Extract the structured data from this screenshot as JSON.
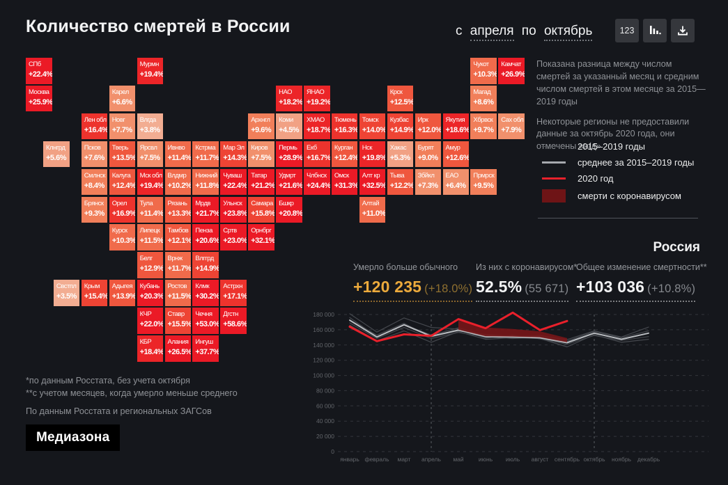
{
  "header": {
    "title": "Количество смертей в России",
    "range": {
      "prefix": "с",
      "from": "апреля",
      "mid": "по",
      "to": "октябрь"
    },
    "buttons": {
      "numbers": "123"
    }
  },
  "description": {
    "p1": "Показана разница между числом смертей за указанный месяц и средним числом смертей в этом месяце за 2015—2019 годы",
    "p2": "Некоторые регионы не предоставили данные за октябрь 2020 года, они отмечены «н/д»"
  },
  "legend": {
    "items": [
      {
        "label": "2015–2019 годы",
        "swatch": "line",
        "color": "#54575c",
        "thickness": 1.5
      },
      {
        "label": "среднее за 2015–2019 годы",
        "swatch": "line",
        "color": "#a6a9ae",
        "thickness": 2.5
      },
      {
        "label": "2020 год",
        "swatch": "line",
        "color": "#e8212b",
        "thickness": 3.5
      },
      {
        "label": "смерти с коронавирусом",
        "swatch": "area",
        "color": "#6e1416",
        "thickness": 19
      }
    ]
  },
  "map": {
    "scale": [
      {
        "max": 4,
        "color": "#f2ad92"
      },
      {
        "max": 6,
        "color": "#f1a184"
      },
      {
        "max": 8,
        "color": "#f1906c"
      },
      {
        "max": 10,
        "color": "#f17f5a"
      },
      {
        "max": 12,
        "color": "#f06b4b"
      },
      {
        "max": 14,
        "color": "#ef573e"
      },
      {
        "max": 16,
        "color": "#ee4434"
      },
      {
        "max": 18,
        "color": "#ed332d"
      },
      {
        "max": 20,
        "color": "#ec2528"
      },
      {
        "max": 999,
        "color": "#eb1a26"
      }
    ],
    "regions": [
      {
        "n": "СПб",
        "d": "+22.4%",
        "v": 22.4,
        "r": 0,
        "c": 0
      },
      {
        "n": "Мурмн",
        "d": "+19.4%",
        "v": 19.4,
        "r": 0,
        "c": 4
      },
      {
        "n": "Чукот",
        "d": "+10.3%",
        "v": 10.3,
        "r": 0,
        "c": 16
      },
      {
        "n": "Камчат",
        "d": "+26.9%",
        "v": 26.9,
        "r": 0,
        "c": 17
      },
      {
        "n": "Москва",
        "d": "+25.9%",
        "v": 25.9,
        "r": 1,
        "c": 0
      },
      {
        "n": "Карел",
        "d": "+6.6%",
        "v": 6.6,
        "r": 1,
        "c": 3
      },
      {
        "n": "НАО",
        "d": "+18.2%",
        "v": 18.2,
        "r": 1,
        "c": 9
      },
      {
        "n": "ЯНАО",
        "d": "+19.2%",
        "v": 19.2,
        "r": 1,
        "c": 10
      },
      {
        "n": "Крск",
        "d": "+12.5%",
        "v": 12.5,
        "r": 1,
        "c": 13
      },
      {
        "n": "Магад",
        "d": "+8.6%",
        "v": 8.6,
        "r": 1,
        "c": 16
      },
      {
        "n": "Лен обл",
        "d": "+16.4%",
        "v": 16.4,
        "r": 2,
        "c": 2
      },
      {
        "n": "Новг",
        "d": "+7.7%",
        "v": 7.7,
        "r": 2,
        "c": 3
      },
      {
        "n": "Влгда",
        "d": "+3.8%",
        "v": 3.8,
        "r": 2,
        "c": 4
      },
      {
        "n": "Архнгл",
        "d": "+9.6%",
        "v": 9.6,
        "r": 2,
        "c": 8
      },
      {
        "n": "Коми",
        "d": "+4.5%",
        "v": 4.5,
        "r": 2,
        "c": 9
      },
      {
        "n": "ХМАО",
        "d": "+18.7%",
        "v": 18.7,
        "r": 2,
        "c": 10
      },
      {
        "n": "Тюмень",
        "d": "+16.3%",
        "v": 16.3,
        "r": 2,
        "c": 11
      },
      {
        "n": "Томск",
        "d": "+14.0%",
        "v": 14.0,
        "r": 2,
        "c": 12
      },
      {
        "n": "Кузбас",
        "d": "+14.9%",
        "v": 14.9,
        "r": 2,
        "c": 13
      },
      {
        "n": "Ирк",
        "d": "+12.0%",
        "v": 12.0,
        "r": 2,
        "c": 14
      },
      {
        "n": "Якутия",
        "d": "+18.6%",
        "v": 18.6,
        "r": 2,
        "c": 15
      },
      {
        "n": "Хбрвск",
        "d": "+9.7%",
        "v": 9.7,
        "r": 2,
        "c": 16
      },
      {
        "n": "Сах обл",
        "d": "+7.9%",
        "v": 7.9,
        "r": 2,
        "c": 17
      },
      {
        "n": "Клнгрд",
        "d": "+5.6%",
        "v": 5.6,
        "r": 3,
        "c": 0,
        "x": 62
      },
      {
        "n": "Псков",
        "d": "+7.6%",
        "v": 7.6,
        "r": 3,
        "c": 2
      },
      {
        "n": "Тверь",
        "d": "+13.5%",
        "v": 13.5,
        "r": 3,
        "c": 3
      },
      {
        "n": "Ярсвл",
        "d": "+7.5%",
        "v": 7.5,
        "r": 3,
        "c": 4
      },
      {
        "n": "Ивнво",
        "d": "+11.4%",
        "v": 11.4,
        "r": 3,
        "c": 5
      },
      {
        "n": "Кстрма",
        "d": "+11.7%",
        "v": 11.7,
        "r": 3,
        "c": 6
      },
      {
        "n": "Мар Эл",
        "d": "+14.3%",
        "v": 14.3,
        "r": 3,
        "c": 7
      },
      {
        "n": "Киров",
        "d": "+7.5%",
        "v": 7.5,
        "r": 3,
        "c": 8
      },
      {
        "n": "Пермь",
        "d": "+28.9%",
        "v": 28.9,
        "r": 3,
        "c": 9
      },
      {
        "n": "Екб",
        "d": "+16.7%",
        "v": 16.7,
        "r": 3,
        "c": 10
      },
      {
        "n": "Курган",
        "d": "+12.4%",
        "v": 12.4,
        "r": 3,
        "c": 11
      },
      {
        "n": "Нск",
        "d": "+19.8%",
        "v": 19.8,
        "r": 3,
        "c": 12
      },
      {
        "n": "Хакас",
        "d": "+5.3%",
        "v": 5.3,
        "r": 3,
        "c": 13
      },
      {
        "n": "Бурят",
        "d": "+9.0%",
        "v": 9.0,
        "r": 3,
        "c": 14
      },
      {
        "n": "Амур",
        "d": "+12.6%",
        "v": 12.6,
        "r": 3,
        "c": 15
      },
      {
        "n": "Смлнск",
        "d": "+8.4%",
        "v": 8.4,
        "r": 4,
        "c": 2
      },
      {
        "n": "Калуга",
        "d": "+12.4%",
        "v": 12.4,
        "r": 4,
        "c": 3
      },
      {
        "n": "Мск обл",
        "d": "+19.4%",
        "v": 19.4,
        "r": 4,
        "c": 4
      },
      {
        "n": "Влдмр",
        "d": "+10.2%",
        "v": 10.2,
        "r": 4,
        "c": 5
      },
      {
        "n": "Нижний",
        "d": "+11.8%",
        "v": 11.8,
        "r": 4,
        "c": 6
      },
      {
        "n": "Чуваш",
        "d": "+22.4%",
        "v": 22.4,
        "r": 4,
        "c": 7
      },
      {
        "n": "Татар",
        "d": "+21.2%",
        "v": 21.2,
        "r": 4,
        "c": 8
      },
      {
        "n": "Удмрт",
        "d": "+21.6%",
        "v": 21.6,
        "r": 4,
        "c": 9
      },
      {
        "n": "Члбнск",
        "d": "+24.4%",
        "v": 24.4,
        "r": 4,
        "c": 10
      },
      {
        "n": "Омск",
        "d": "+31.3%",
        "v": 31.3,
        "r": 4,
        "c": 11
      },
      {
        "n": "Алт кр",
        "d": "+32.5%",
        "v": 32.5,
        "r": 4,
        "c": 12
      },
      {
        "n": "Тыва",
        "d": "+12.2%",
        "v": 12.2,
        "r": 4,
        "c": 13
      },
      {
        "n": "Збйкл",
        "d": "+7.3%",
        "v": 7.3,
        "r": 4,
        "c": 14
      },
      {
        "n": "ЕАО",
        "d": "+6.4%",
        "v": 6.4,
        "r": 4,
        "c": 15
      },
      {
        "n": "Прмрск",
        "d": "+9.5%",
        "v": 9.5,
        "r": 4,
        "c": 16
      },
      {
        "n": "Брянск",
        "d": "+9.3%",
        "v": 9.3,
        "r": 5,
        "c": 2
      },
      {
        "n": "Орел",
        "d": "+16.9%",
        "v": 16.9,
        "r": 5,
        "c": 3
      },
      {
        "n": "Тула",
        "d": "+11.4%",
        "v": 11.4,
        "r": 5,
        "c": 4
      },
      {
        "n": "Рязань",
        "d": "+13.3%",
        "v": 13.3,
        "r": 5,
        "c": 5
      },
      {
        "n": "Мрдв",
        "d": "+21.7%",
        "v": 21.7,
        "r": 5,
        "c": 6
      },
      {
        "n": "Ульнск",
        "d": "+23.8%",
        "v": 23.8,
        "r": 5,
        "c": 7
      },
      {
        "n": "Самара",
        "d": "+15.8%",
        "v": 15.8,
        "r": 5,
        "c": 8
      },
      {
        "n": "Бшкр",
        "d": "+20.8%",
        "v": 20.8,
        "r": 5,
        "c": 9
      },
      {
        "n": "Алтай",
        "d": "+11.0%",
        "v": 11.0,
        "r": 5,
        "c": 12
      },
      {
        "n": "Курск",
        "d": "+10.3%",
        "v": 10.3,
        "r": 6,
        "c": 3
      },
      {
        "n": "Липецк",
        "d": "+11.5%",
        "v": 11.5,
        "r": 6,
        "c": 4
      },
      {
        "n": "Тамбов",
        "d": "+12.1%",
        "v": 12.1,
        "r": 6,
        "c": 5
      },
      {
        "n": "Пенза",
        "d": "+20.6%",
        "v": 20.6,
        "r": 6,
        "c": 6
      },
      {
        "n": "Сртв",
        "d": "+23.0%",
        "v": 23.0,
        "r": 6,
        "c": 7
      },
      {
        "n": "Орнбрг",
        "d": "+32.1%",
        "v": 32.1,
        "r": 6,
        "c": 8
      },
      {
        "n": "Белг",
        "d": "+12.9%",
        "v": 12.9,
        "r": 7,
        "c": 4
      },
      {
        "n": "Врнж",
        "d": "+11.7%",
        "v": 11.7,
        "r": 7,
        "c": 5
      },
      {
        "n": "Влггрд",
        "d": "+14.9%",
        "v": 14.9,
        "r": 7,
        "c": 6
      },
      {
        "n": "Свстпл",
        "d": "+3.5%",
        "v": 3.5,
        "r": 8,
        "c": 1
      },
      {
        "n": "Крым",
        "d": "+15.4%",
        "v": 15.4,
        "r": 8,
        "c": 2
      },
      {
        "n": "Адыгея",
        "d": "+13.9%",
        "v": 13.9,
        "r": 8,
        "c": 3
      },
      {
        "n": "Кубань",
        "d": "+20.3%",
        "v": 20.3,
        "r": 8,
        "c": 4
      },
      {
        "n": "Ростов",
        "d": "+11.5%",
        "v": 11.5,
        "r": 8,
        "c": 5
      },
      {
        "n": "Клмк",
        "d": "+30.2%",
        "v": 30.2,
        "r": 8,
        "c": 6
      },
      {
        "n": "Астрхн",
        "d": "+17.1%",
        "v": 17.1,
        "r": 8,
        "c": 7
      },
      {
        "n": "КЧР",
        "d": "+22.0%",
        "v": 22.0,
        "r": 9,
        "c": 4
      },
      {
        "n": "Ставр",
        "d": "+15.5%",
        "v": 15.5,
        "r": 9,
        "c": 5
      },
      {
        "n": "Чечня",
        "d": "+53.0%",
        "v": 53.0,
        "r": 9,
        "c": 6
      },
      {
        "n": "Дгстн",
        "d": "+58.6%",
        "v": 58.6,
        "r": 9,
        "c": 7
      },
      {
        "n": "КБР",
        "d": "+18.4%",
        "v": 18.4,
        "r": 10,
        "c": 4
      },
      {
        "n": "Алания",
        "d": "+26.5%",
        "v": 26.5,
        "r": 10,
        "c": 5
      },
      {
        "n": "Ингуш",
        "d": "+37.7%",
        "v": 37.7,
        "r": 10,
        "c": 6
      }
    ]
  },
  "stats": {
    "country": "Россия",
    "items": [
      {
        "label": "Умерло больше обычного",
        "value": "+120 235",
        "sub": "(+18.0%)"
      },
      {
        "label": "Из них с коронавирусом*",
        "value": "52.5%",
        "sub": "(55 671)"
      },
      {
        "label": "Общее изменение смертности**",
        "value": "+103 036",
        "sub": "(+10.8%)"
      }
    ]
  },
  "chart_data": {
    "type": "line",
    "x": [
      "январь",
      "февраль",
      "март",
      "апрель",
      "май",
      "июнь",
      "июль",
      "август",
      "сентябрь",
      "октябрь",
      "ноябрь",
      "декабрь"
    ],
    "ylim": [
      0,
      180000
    ],
    "yticks": {
      "step": 20000,
      "labels": [
        "0",
        "20 000",
        "40 000",
        "60 000",
        "80 000",
        "100 000",
        "120 000",
        "140 000",
        "160 000",
        "180 000"
      ]
    },
    "highlight_indices": [
      3,
      9
    ],
    "grid": true,
    "series": [
      {
        "name": "2015",
        "role": "year",
        "values": [
          181000,
          157000,
          175500,
          163000,
          161000,
          149000,
          153000,
          148000,
          141000,
          152500,
          146000,
          151000
        ]
      },
      {
        "name": "2016",
        "role": "year",
        "values": [
          173000,
          153000,
          168500,
          150500,
          158500,
          154000,
          151000,
          152500,
          147000,
          158500,
          150500,
          163500
        ]
      },
      {
        "name": "2017",
        "role": "year",
        "values": [
          169000,
          148500,
          163000,
          148500,
          156500,
          150500,
          148500,
          150000,
          144000,
          156000,
          148000,
          156000
        ]
      },
      {
        "name": "2018",
        "role": "year",
        "values": [
          176000,
          151000,
          167000,
          153000,
          162500,
          152500,
          152000,
          151000,
          145000,
          157500,
          149500,
          158500
        ]
      },
      {
        "name": "2019",
        "role": "year",
        "values": [
          166000,
          145500,
          158500,
          143500,
          157500,
          147500,
          149500,
          148500,
          137500,
          153500,
          143500,
          147500
        ]
      },
      {
        "name": "среднее за 2015–2019 годы",
        "role": "average",
        "values": [
          172500,
          150500,
          166500,
          151500,
          159500,
          151000,
          150500,
          149500,
          143000,
          155500,
          147500,
          155500
        ]
      },
      {
        "name": "2020 год",
        "role": "current",
        "values": [
          164000,
          145000,
          154000,
          152000,
          174000,
          162000,
          182500,
          159500,
          171500
        ]
      }
    ],
    "covid_area": {
      "name": "смерти с коронавирусом",
      "start_index": 4,
      "top": [
        172000,
        163000,
        161000,
        158000,
        149000
      ],
      "bottom": [
        160000,
        151500,
        151000,
        150000,
        143500
      ]
    },
    "colors": {
      "year": "#45484e",
      "average": "#b9bcc0",
      "current": "#e9202b",
      "area": "#7c1518",
      "grid": "#33363b",
      "highlight_line": "#5c5f65",
      "axis_text": "#63666b"
    }
  },
  "footer": {
    "footnote1": "*по данным Росстата, без учета октября",
    "footnote2": "**с учетом месяцев, когда умерло меньше среднего",
    "source": "По данным Росстата и региональных ЗАГСов",
    "logo": "Медиазона"
  }
}
